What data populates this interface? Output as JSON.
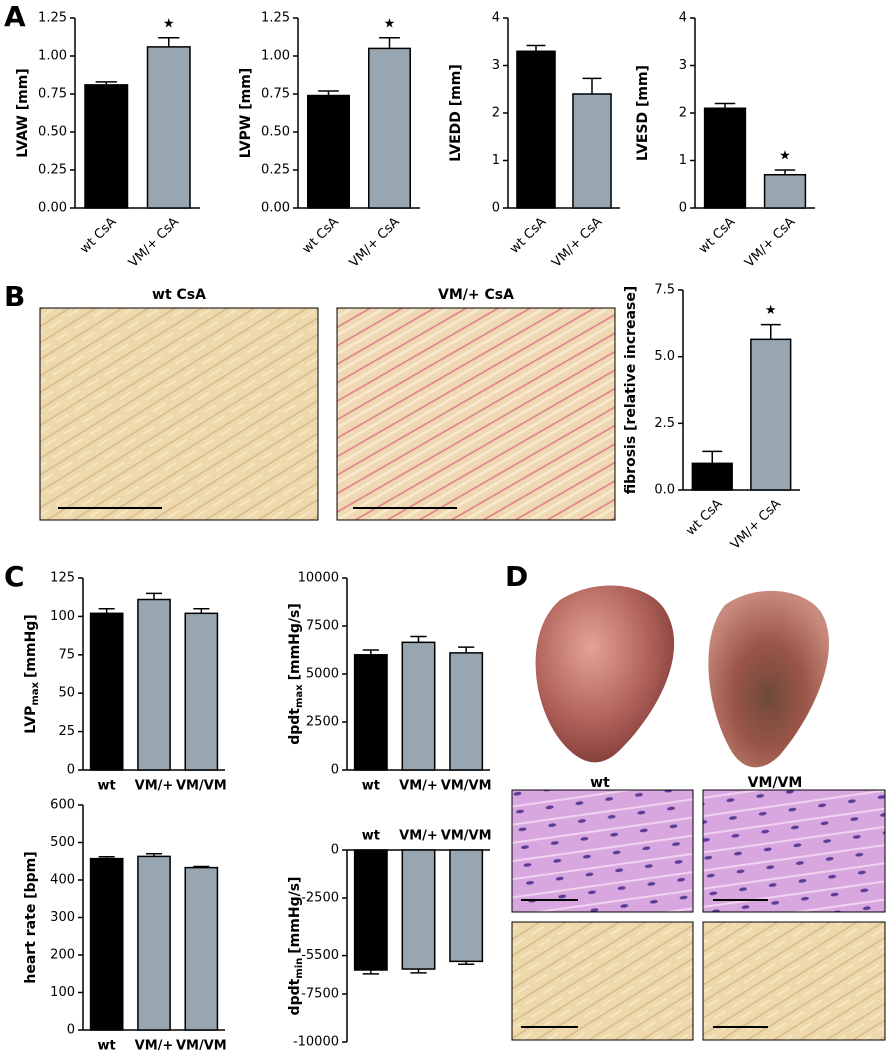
{
  "panel_labels": [
    "A",
    "B",
    "C",
    "D"
  ],
  "images": {
    "B": [
      "wt CsA",
      "VM/+ CsA"
    ],
    "D": [
      "wt",
      "VM/VM"
    ]
  },
  "chart_data": [
    {
      "type": "bar",
      "ylabel": "LVAW [mm]",
      "categories": [
        "wt CsA",
        "VM/+ CsA"
      ],
      "values": [
        0.81,
        1.06
      ],
      "errors": [
        0.02,
        0.06
      ],
      "colors": [
        "#000000",
        "#97a6b0"
      ],
      "ylim": [
        0,
        1.25
      ],
      "yticks": [
        {
          "value": 0,
          "label": "0.00"
        },
        0.25,
        {
          "value": 0.5,
          "label": "0.50"
        },
        0.75,
        {
          "value": 1,
          "label": "1.00"
        },
        1.25
      ],
      "annotations": [
        {
          "text": "★",
          "x": "VM/+ CsA"
        }
      ]
    },
    {
      "type": "bar",
      "ylabel": "LVPW [mm]",
      "categories": [
        "wt CsA",
        "VM/+ CsA"
      ],
      "values": [
        0.74,
        1.05
      ],
      "errors": [
        0.03,
        0.07
      ],
      "colors": [
        "#000000",
        "#97a6b0"
      ],
      "ylim": [
        0,
        1.25
      ],
      "yticks": [
        {
          "value": 0,
          "label": "0.00"
        },
        0.25,
        {
          "value": 0.5,
          "label": "0.50"
        },
        0.75,
        {
          "value": 1,
          "label": "1.00"
        },
        1.25
      ],
      "annotations": [
        {
          "text": "★",
          "x": "VM/+ CsA"
        }
      ]
    },
    {
      "type": "bar",
      "ylabel": "LVEDD [mm]",
      "categories": [
        "wt CsA",
        "VM/+ CsA"
      ],
      "values": [
        3.3,
        2.4
      ],
      "errors": [
        0.12,
        0.33
      ],
      "colors": [
        "#000000",
        "#97a6b0"
      ],
      "ylim": [
        0,
        4
      ],
      "yticks": [
        0,
        1,
        2,
        3,
        4
      ]
    },
    {
      "type": "bar",
      "ylabel": "LVESD [mm]",
      "categories": [
        "wt CsA",
        "VM/+ CsA"
      ],
      "values": [
        2.1,
        0.7
      ],
      "errors": [
        0.1,
        0.1
      ],
      "colors": [
        "#000000",
        "#97a6b0"
      ],
      "ylim": [
        0,
        4
      ],
      "yticks": [
        0,
        1,
        2,
        3,
        4
      ],
      "annotations": [
        {
          "text": "★",
          "x": "VM/+ CsA"
        }
      ]
    },
    {
      "type": "bar",
      "ylabel": "fibrosis [relative increase]",
      "categories": [
        "wt CsA",
        "VM/+ CsA"
      ],
      "values": [
        1.0,
        5.65
      ],
      "errors": [
        0.45,
        0.55
      ],
      "colors": [
        "#000000",
        "#97a6b0"
      ],
      "ylim": [
        0,
        7.5
      ],
      "yticks": [
        {
          "value": 0,
          "label": "0.0"
        },
        2.5,
        {
          "value": 5,
          "label": "5.0"
        },
        7.5
      ],
      "annotations": [
        {
          "text": "★",
          "x": "VM/+ CsA"
        }
      ]
    },
    {
      "type": "bar",
      "ylabel": "LVP",
      "ylabel_sub": "max",
      "ylabel_unit": "[mmHg]",
      "categories": [
        "wt",
        "VM/+",
        "VM/VM"
      ],
      "values": [
        102,
        111,
        102
      ],
      "errors": [
        3,
        4,
        3
      ],
      "colors": [
        "#000000",
        "#97a6b0",
        "#97a6b0"
      ],
      "ylim": [
        0,
        125
      ],
      "yticks": [
        0,
        25,
        50,
        75,
        100,
        125
      ]
    },
    {
      "type": "bar",
      "ylabel": "dpdt",
      "ylabel_sub": "max",
      "ylabel_unit": "[mmHg/s]",
      "categories": [
        "wt",
        "VM/+",
        "VM/VM"
      ],
      "values": [
        6000,
        6650,
        6100
      ],
      "errors": [
        250,
        300,
        300
      ],
      "colors": [
        "#000000",
        "#97a6b0",
        "#97a6b0"
      ],
      "ylim": [
        0,
        10000
      ],
      "yticks": [
        0,
        2500,
        5000,
        7500,
        10000
      ]
    },
    {
      "type": "bar",
      "ylabel": "heart rate [bpm]",
      "categories": [
        "wt",
        "VM/+",
        "VM/VM"
      ],
      "values": [
        457,
        463,
        433
      ],
      "errors": [
        5,
        7,
        3
      ],
      "colors": [
        "#000000",
        "#97a6b0",
        "#97a6b0"
      ],
      "ylim": [
        0,
        600
      ],
      "yticks": [
        0,
        100,
        200,
        300,
        400,
        500,
        600
      ]
    },
    {
      "type": "bar",
      "ylabel": "dpdt",
      "ylabel_sub": "min",
      "ylabel_unit": "[mmHg/s]",
      "categories": [
        "wt",
        "VM/+",
        "VM/VM"
      ],
      "values": [
        -6250,
        -6200,
        -5800
      ],
      "errors": [
        200,
        200,
        150
      ],
      "colors": [
        "#000000",
        "#97a6b0",
        "#97a6b0"
      ],
      "ylim": [
        -10000,
        0
      ],
      "yticks": [
        0,
        -2500,
        -5500,
        -7500,
        -10000
      ]
    }
  ]
}
